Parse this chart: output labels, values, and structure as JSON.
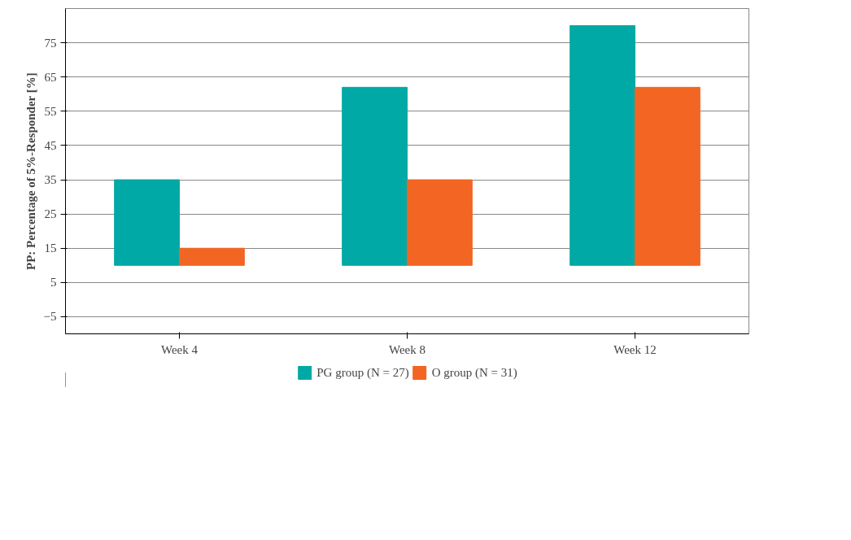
{
  "chart_data": {
    "type": "bar",
    "ylabel": "PP: Percentage of 5%-Responder [%]",
    "categories": [
      "Week 4",
      "Week 8",
      "Week 12"
    ],
    "series": [
      {
        "name": "PG group (N = 27)",
        "color": "#00a9a5",
        "base": [
          10,
          10,
          10
        ],
        "values": [
          25,
          52,
          70
        ]
      },
      {
        "name": "O group (N = 31)",
        "color": "#f26522",
        "base": [
          10,
          10,
          10
        ],
        "values": [
          5,
          25,
          52
        ]
      }
    ],
    "ylim": [
      -10,
      85
    ],
    "yticks": [
      -5,
      5,
      15,
      25,
      35,
      45,
      55,
      65,
      75
    ],
    "grid": "y",
    "legend": "bottom"
  }
}
